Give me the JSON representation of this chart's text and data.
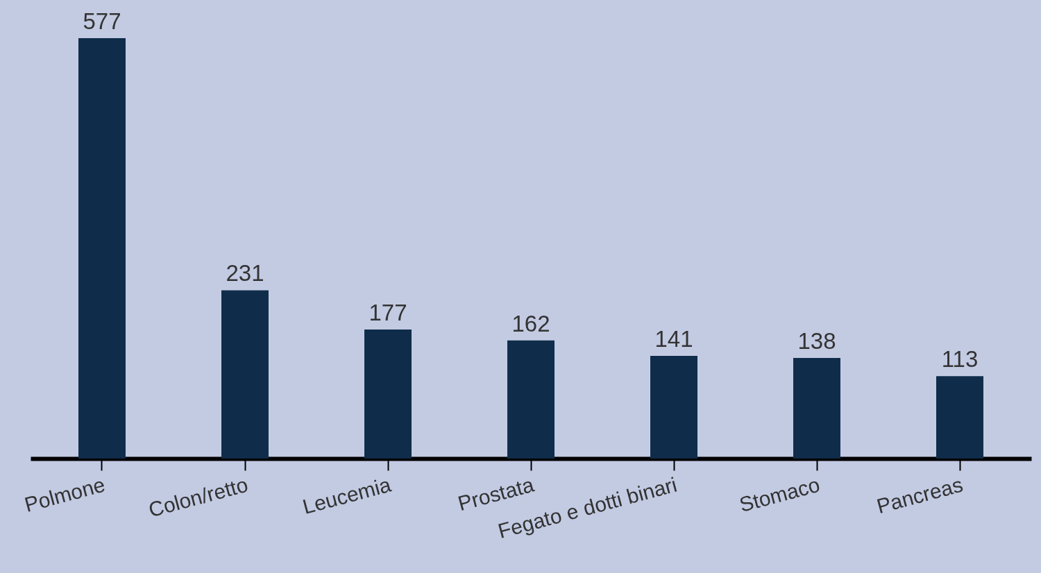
{
  "chart_data": {
    "type": "bar",
    "categories": [
      "Polmone",
      "Colon/retto",
      "Leucemia",
      "Prostata",
      "Fegato e dotti binari",
      "Stomaco",
      "Pancreas"
    ],
    "values": [
      577,
      231,
      177,
      162,
      141,
      138,
      113
    ],
    "color": "#0f2d4a",
    "data_labels": true
  }
}
